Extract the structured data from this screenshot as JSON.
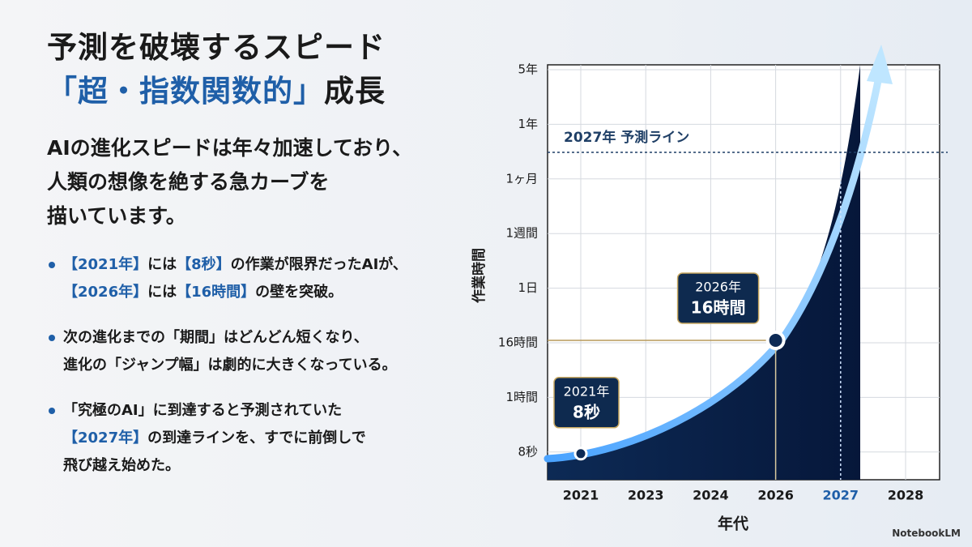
{
  "slide": {
    "title": [
      "予測を破壊するスピード",
      [
        {
          "text": "「超・指数関数的」",
          "highlight": true
        },
        {
          "text": "成長"
        }
      ]
    ],
    "intro": [
      "AIの進化スピードは年々加速しており、",
      "人類の想像を絶する急カーブを",
      "描いています。"
    ],
    "bullets": [
      [
        [
          {
            "text": "【2021年】",
            "highlight": true
          },
          {
            "text": "には"
          },
          {
            "text": "【8秒】",
            "highlight": true
          },
          {
            "text": "の作業が限界だったAIが、"
          }
        ],
        [
          {
            "text": "【2026年】",
            "highlight": true
          },
          {
            "text": "には"
          },
          {
            "text": "【16時間】",
            "highlight": true
          },
          {
            "text": "の壁を突破。"
          }
        ]
      ],
      [
        [
          {
            "text": "次の進化までの「期間」はどんどん短くなり、"
          }
        ],
        [
          {
            "text": "進化の「ジャンプ幅」は劇的に大きくなっている。"
          }
        ]
      ],
      [
        [
          {
            "text": "「究極のAI」に到達すると予測されていた"
          }
        ],
        [
          {
            "text": "【2027年】",
            "highlight": true
          },
          {
            "text": "の到達ラインを、すでに前倒しで"
          }
        ],
        [
          {
            "text": "飛び越え始めた。"
          }
        ]
      ]
    ],
    "footer": "NotebookLM"
  },
  "chart_data": {
    "type": "curve",
    "x_label": "年代",
    "y_label": "作業時間",
    "categories": [
      "2021",
      "2023",
      "2024",
      "2026",
      "2027",
      "2028"
    ],
    "y_categories": [
      "5年",
      "1年",
      "1ヶ月",
      "1週間",
      "1日",
      "16時間",
      "1時間",
      "8秒"
    ],
    "points": [
      {
        "x": "2021",
        "y": "8秒",
        "label": [
          "2021年",
          "8秒"
        ]
      },
      {
        "x": "2026",
        "y": "16時間",
        "label": [
          "2026年",
          "16時間"
        ]
      }
    ],
    "reference_x": "2027",
    "reference_label": "2027年 予測ライン",
    "color": "#1f5fa8",
    "grid": true
  }
}
